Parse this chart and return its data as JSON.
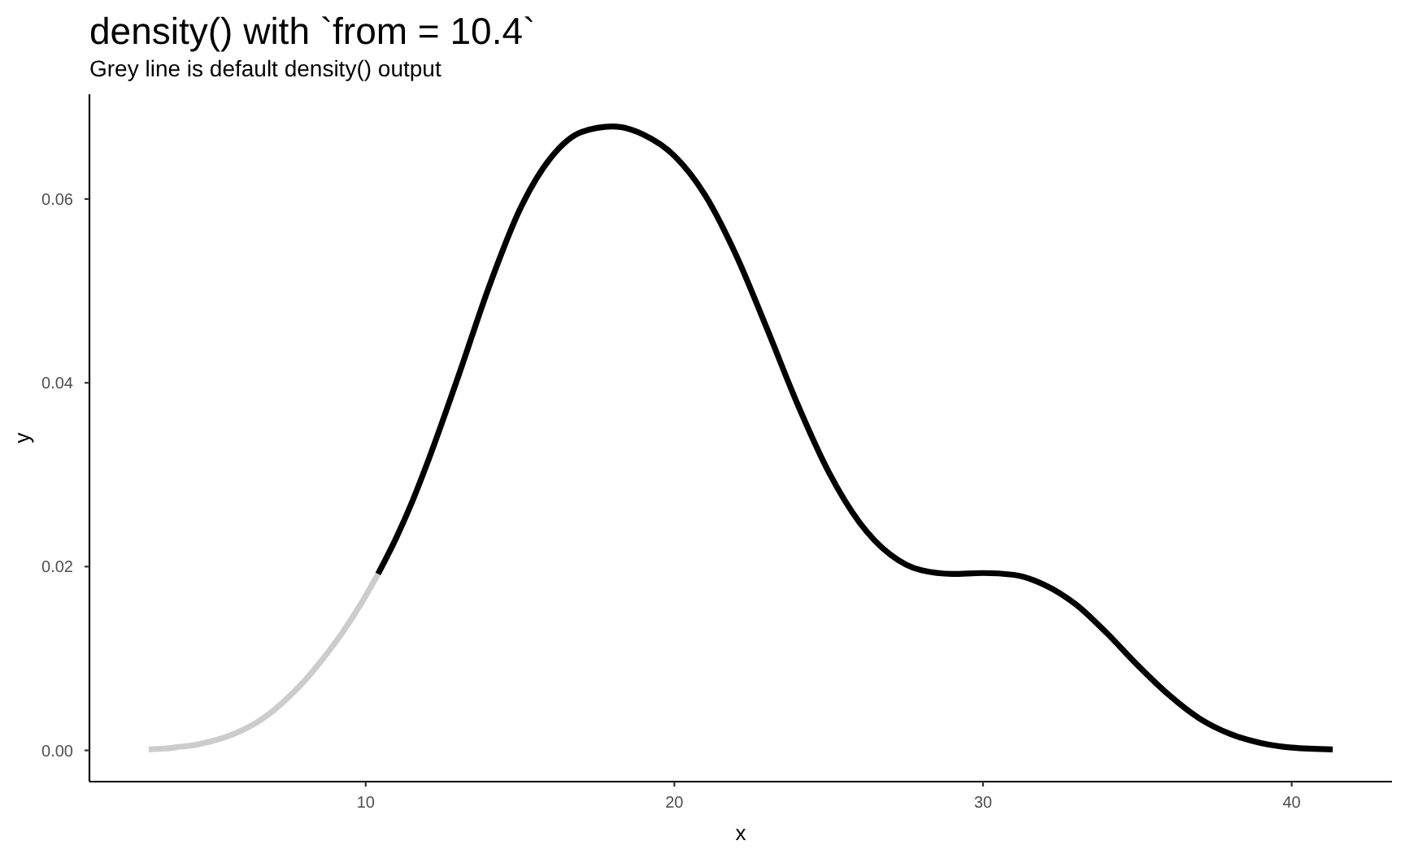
{
  "chart_data": {
    "type": "line",
    "title": "density() with `from = 10.4`",
    "subtitle": "Grey line is default density() output",
    "xlabel": "x",
    "ylabel": "y",
    "xlim": [
      1.05,
      43.25
    ],
    "ylim": [
      -0.0034,
      0.0714
    ],
    "xticks": [
      10,
      20,
      30,
      40
    ],
    "yticks": [
      {
        "value": 0,
        "label": "0.00"
      },
      0.02,
      0.04,
      0.06
    ],
    "marker": "none",
    "line_style": "solid",
    "series": [
      {
        "color": "#cccccc",
        "x": [
          2.97,
          3.5,
          4,
          4.5,
          5,
          5.5,
          6,
          6.5,
          7,
          7.5,
          8,
          8.6,
          9.2,
          9.8,
          10.4
        ],
        "values": [
          0.0001,
          0.0002,
          0.0004,
          0.0006,
          0.001,
          0.0015,
          0.0022,
          0.0031,
          0.0043,
          0.0058,
          0.0075,
          0.0099,
          0.0126,
          0.0157,
          0.0192
        ]
      },
      {
        "color": "#000000",
        "x": [
          10.4,
          11,
          11.5,
          12,
          13,
          14,
          15,
          16,
          17,
          18,
          19,
          20,
          21,
          22,
          23,
          24,
          25,
          26,
          27,
          28,
          29,
          30,
          31,
          32,
          33,
          34,
          35,
          36,
          37,
          38,
          39,
          40,
          41.33
        ],
        "values": [
          0.0192,
          0.0232,
          0.027,
          0.0313,
          0.0407,
          0.0505,
          0.0589,
          0.0645,
          0.0673,
          0.0679,
          0.067,
          0.0647,
          0.0604,
          0.0539,
          0.0459,
          0.0376,
          0.0303,
          0.0248,
          0.0213,
          0.0196,
          0.0192,
          0.0193,
          0.0191,
          0.018,
          0.0159,
          0.0128,
          0.0093,
          0.0061,
          0.0035,
          0.0018,
          0.0008,
          0.0003,
          0.0001
        ]
      }
    ]
  }
}
